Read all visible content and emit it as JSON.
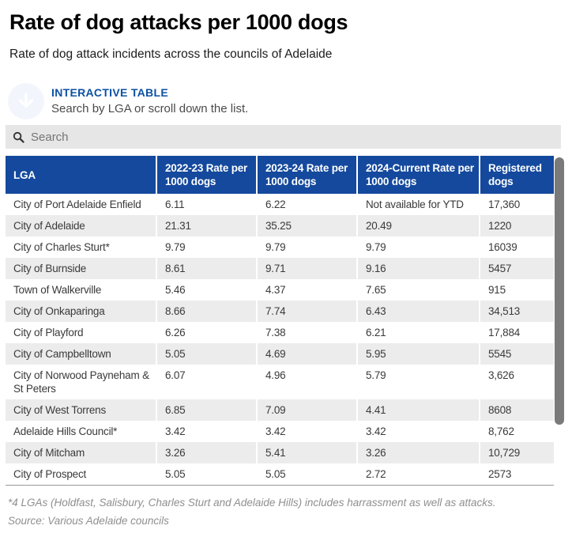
{
  "header": {
    "title": "Rate of dog attacks per 1000 dogs",
    "subtitle": "Rate of dog attack incidents across the councils of Adelaide"
  },
  "kicker": {
    "label": "INTERACTIVE TABLE",
    "instruction": "Search by LGA or scroll down the list.",
    "icon": "down-arrow-circle-icon"
  },
  "search": {
    "placeholder": "Search",
    "icon": "search-icon"
  },
  "chart_data": {
    "type": "table",
    "columns": [
      "LGA",
      "2022-23 Rate per 1000 dogs",
      "2023-24 Rate per 1000 dogs",
      "2024-Current Rate per 1000 dogs",
      "Registered dogs"
    ],
    "rows": [
      [
        "City of Port Adelaide Enfield",
        "6.11",
        "6.22",
        "Not available for YTD",
        "17,360"
      ],
      [
        "City of Adelaide",
        "21.31",
        "35.25",
        "20.49",
        "1220"
      ],
      [
        "City of Charles Sturt*",
        "9.79",
        "9.79",
        "9.79",
        "16039"
      ],
      [
        "City of Burnside",
        "8.61",
        "9.71",
        "9.16",
        "5457"
      ],
      [
        "Town of Walkerville",
        "5.46",
        "4.37",
        "7.65",
        "915"
      ],
      [
        "City of Onkaparinga",
        "8.66",
        "7.74",
        "6.43",
        "34,513"
      ],
      [
        "City of Playford",
        "6.26",
        "7.38",
        "6.21",
        "17,884"
      ],
      [
        "City of Campbelltown",
        "5.05",
        "4.69",
        "5.95",
        "5545"
      ],
      [
        "City of Norwood Payneham & St Peters",
        "6.07",
        "4.96",
        "5.79",
        "3,626"
      ],
      [
        "City of West Torrens",
        "6.85",
        "7.09",
        "4.41",
        "8608"
      ],
      [
        "Adelaide Hills Council*",
        "3.42",
        "3.42",
        "3.42",
        "8,762"
      ],
      [
        "City of Mitcham",
        "3.26",
        "5.41",
        "3.26",
        "10,729"
      ],
      [
        "City of Prospect",
        "5.05",
        "5.05",
        "2.72",
        "2573"
      ]
    ],
    "title": "Rate of dog attacks per 1000 dogs",
    "subtitle": "Rate of dog attack incidents across the councils of Adelaide",
    "legend_position": "none",
    "layout": {
      "striped_rows": true,
      "header_bg": "#14499d",
      "alt_row_bg": "#ececec",
      "scrolled": true
    }
  },
  "footer": {
    "note": "*4 LGAs (Holdfast, Salisbury, Charles Sturt and Adelaide Hills) includes harrassment as well as attacks.",
    "source": "Source: Various Adelaide councils"
  },
  "colors": {
    "header_bg": "#14499d",
    "kicker_blue": "#0c51a3",
    "alt_row_bg": "#ececec",
    "search_bg": "#e6e6e6",
    "scrollbar_thumb": "#7a7a7a",
    "footnote_gray": "#8f8f8f"
  }
}
